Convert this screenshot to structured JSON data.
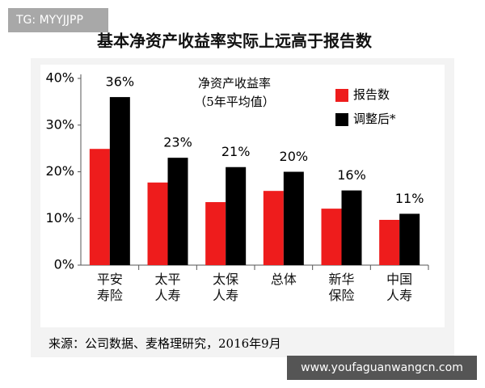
{
  "watermark": "TG: MYYJJPP",
  "site_watermark": "www.youfaguanwangcn.com",
  "chart_data": {
    "type": "bar",
    "title": "基本净资产收益率实际上远高于报告数",
    "annotation": [
      "净资产收益率",
      "（5年平均值）"
    ],
    "categories": [
      "平安寿险",
      "太平人寿",
      "太保人寿",
      "总体",
      "新华保险",
      "中国人寿"
    ],
    "series": [
      {
        "name": "报告数",
        "color": "#ee1c1c",
        "values": [
          24.9,
          17.7,
          13.5,
          15.9,
          12.1,
          9.7
        ]
      },
      {
        "name": "调整后*",
        "color": "#000000",
        "values": [
          36,
          23,
          21,
          20,
          16,
          11
        ],
        "value_labels": [
          "36%",
          "23%",
          "21%",
          "20%",
          "16%",
          "11%"
        ]
      }
    ],
    "ylim": [
      0,
      40
    ],
    "yticks": [
      {
        "value": 0,
        "label": "0%"
      },
      {
        "value": 10,
        "label": "10%"
      },
      {
        "value": 20,
        "label": "20%"
      },
      {
        "value": 30,
        "label": "30%"
      },
      {
        "value": 40,
        "label": "40%"
      }
    ],
    "legend": "upper-right",
    "source": "来源：公司数据、麦格理研究，2016年9月"
  }
}
